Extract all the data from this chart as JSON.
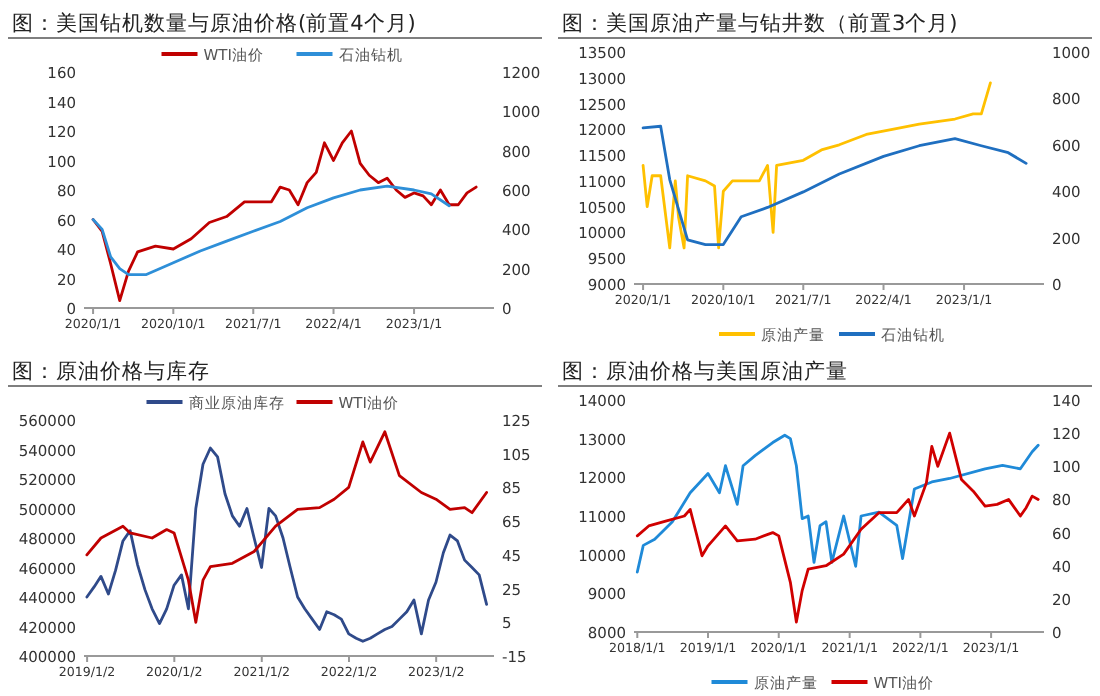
{
  "chart_data": [
    {
      "type": "line",
      "title": "图：美国钻机数量与原油价格(前置4个月)",
      "legend": "top",
      "xlim": [
        "2019-12-01",
        "2023-10-01"
      ],
      "xticks": [
        {
          "value": "2020-01-01",
          "label": "2020/1/1"
        },
        {
          "value": "2020-10-01",
          "label": "2020/10/1"
        },
        {
          "value": "2021-07-01",
          "label": "2021/7/1"
        },
        {
          "value": "2022-04-01",
          "label": "2022/4/1"
        },
        {
          "value": "2023-01-01",
          "label": "2023/1/1"
        }
      ],
      "ylim": [
        0,
        160
      ],
      "yticks": [
        0,
        20,
        40,
        60,
        80,
        100,
        120,
        140,
        160
      ],
      "y2lim": [
        0,
        1200
      ],
      "y2ticks": [
        0,
        200,
        400,
        600,
        800,
        1000,
        1200
      ],
      "series": [
        {
          "name": "WTI油价",
          "color": "#c00000",
          "x": [
            "2020-01",
            "2020-02",
            "2020-03",
            "2020-04",
            "2020-05",
            "2020-06",
            "2020-08",
            "2020-10",
            "2020-12",
            "2021-02",
            "2021-04",
            "2021-06",
            "2021-07",
            "2021-09",
            "2021-10",
            "2021-11",
            "2021-12",
            "2022-01",
            "2022-02",
            "2022-03",
            "2022-04",
            "2022-05",
            "2022-06",
            "2022-07",
            "2022-08",
            "2022-09",
            "2022-10",
            "2022-11",
            "2022-12",
            "2023-01",
            "2023-02",
            "2023-03",
            "2023-04",
            "2023-05",
            "2023-06",
            "2023-07",
            "2023-08"
          ],
          "values": [
            60,
            52,
            30,
            5,
            25,
            38,
            42,
            40,
            47,
            58,
            62,
            72,
            72,
            72,
            82,
            80,
            70,
            85,
            92,
            112,
            100,
            112,
            120,
            98,
            90,
            85,
            88,
            80,
            75,
            78,
            76,
            70,
            80,
            70,
            70,
            78,
            82
          ]
        },
        {
          "name": "石油钻机",
          "color": "#2e8fd8",
          "axis": "y2",
          "x": [
            "2020-01",
            "2020-02",
            "2020-03",
            "2020-04",
            "2020-05",
            "2020-07",
            "2020-10",
            "2021-01",
            "2021-04",
            "2021-07",
            "2021-10",
            "2022-01",
            "2022-04",
            "2022-07",
            "2022-10",
            "2023-01",
            "2023-03",
            "2023-05"
          ],
          "values": [
            450,
            400,
            260,
            200,
            170,
            170,
            230,
            290,
            340,
            390,
            440,
            510,
            560,
            600,
            620,
            600,
            580,
            520
          ]
        }
      ]
    },
    {
      "type": "line",
      "title": "图：美国原油产量与钻井数（前置3个月)",
      "legend": "bottom",
      "xlim": [
        "2019-12-01",
        "2023-10-01"
      ],
      "xticks": [
        {
          "value": "2020-01-01",
          "label": "2020/1/1"
        },
        {
          "value": "2020-10-01",
          "label": "2020/10/1"
        },
        {
          "value": "2021-07-01",
          "label": "2021/7/1"
        },
        {
          "value": "2022-04-01",
          "label": "2022/4/1"
        },
        {
          "value": "2023-01-01",
          "label": "2023/1/1"
        }
      ],
      "ylim": [
        9000,
        13500
      ],
      "yticks": [
        9000,
        9500,
        10000,
        10500,
        11000,
        11500,
        12000,
        12500,
        13000,
        13500
      ],
      "y2lim": [
        0,
        1000
      ],
      "y2ticks": [
        0,
        200,
        400,
        600,
        800,
        1000
      ],
      "series": [
        {
          "name": "原油产量",
          "color": "#ffc000",
          "x": [
            "2020-01-01",
            "2020-01-15",
            "2020-02-01",
            "2020-03-01",
            "2020-04-01",
            "2020-04-20",
            "2020-05-01",
            "2020-05-20",
            "2020-06-01",
            "2020-08-01",
            "2020-09-01",
            "2020-09-15",
            "2020-10-01",
            "2020-11-01",
            "2021-02-01",
            "2021-03-01",
            "2021-03-20",
            "2021-04-01",
            "2021-07-01",
            "2021-09-01",
            "2021-11-01",
            "2022-02-01",
            "2022-05-01",
            "2022-08-01",
            "2022-12-01",
            "2023-02-01",
            "2023-03-01",
            "2023-04-01"
          ],
          "values": [
            11300,
            10500,
            11100,
            11100,
            9700,
            11000,
            10300,
            9700,
            11100,
            11000,
            10900,
            9700,
            10800,
            11000,
            11000,
            11300,
            10000,
            11300,
            11400,
            11600,
            11700,
            11900,
            12000,
            12100,
            12200,
            12300,
            12300,
            12900
          ]
        },
        {
          "name": "石油钻机",
          "color": "#1f6fc0",
          "axis": "y2",
          "x": [
            "2020-01",
            "2020-03",
            "2020-04",
            "2020-06",
            "2020-08",
            "2020-10",
            "2020-12",
            "2021-03",
            "2021-07",
            "2021-11",
            "2022-04",
            "2022-08",
            "2022-12",
            "2023-03",
            "2023-06",
            "2023-08"
          ],
          "values": [
            673,
            680,
            450,
            190,
            170,
            170,
            290,
            330,
            397,
            474,
            550,
            596,
            627,
            596,
            566,
            520
          ]
        }
      ]
    },
    {
      "type": "line",
      "title": "图：原油价格与库存",
      "legend": "top",
      "xlim": [
        "2018-12-20",
        "2023-09-01"
      ],
      "xticks": [
        {
          "value": "2019-01-02",
          "label": "2019/1/2"
        },
        {
          "value": "2020-01-02",
          "label": "2020/1/2"
        },
        {
          "value": "2021-01-02",
          "label": "2021/1/2"
        },
        {
          "value": "2022-01-02",
          "label": "2022/1/2"
        },
        {
          "value": "2023-01-02",
          "label": "2023/1/2"
        }
      ],
      "ylim": [
        400000,
        560000
      ],
      "yticks": [
        400000,
        420000,
        440000,
        460000,
        480000,
        500000,
        520000,
        540000,
        560000
      ],
      "y2lim": [
        -15,
        125
      ],
      "y2ticks": [
        -15,
        5,
        25,
        45,
        65,
        85,
        105,
        125
      ],
      "series": [
        {
          "name": "商业原油库存",
          "color": "#2f4a8a",
          "x": [
            "2019-01",
            "2019-02",
            "2019-03",
            "2019-04",
            "2019-05",
            "2019-06",
            "2019-07",
            "2019-08",
            "2019-09",
            "2019-10",
            "2019-11",
            "2019-12",
            "2020-01",
            "2020-02",
            "2020-03",
            "2020-04",
            "2020-05",
            "2020-06",
            "2020-07",
            "2020-08",
            "2020-09",
            "2020-10",
            "2020-11",
            "2020-12",
            "2021-01",
            "2021-02",
            "2021-03",
            "2021-04",
            "2021-05",
            "2021-06",
            "2021-07",
            "2021-08",
            "2021-09",
            "2021-10",
            "2021-11",
            "2021-12",
            "2022-01",
            "2022-02",
            "2022-03",
            "2022-04",
            "2022-05",
            "2022-06",
            "2022-07",
            "2022-08",
            "2022-09",
            "2022-10",
            "2022-11",
            "2022-12",
            "2023-01",
            "2023-02",
            "2023-03",
            "2023-04",
            "2023-05",
            "2023-06",
            "2023-07",
            "2023-08"
          ],
          "values": [
            440000,
            447000,
            454000,
            442000,
            458000,
            478000,
            485000,
            462000,
            445000,
            432000,
            422000,
            432000,
            448000,
            455000,
            432000,
            500000,
            530000,
            541000,
            535000,
            510000,
            495000,
            488000,
            500000,
            480000,
            460000,
            500000,
            495000,
            480000,
            460000,
            440000,
            432000,
            425000,
            418000,
            430000,
            428000,
            425000,
            415000,
            412000,
            410000,
            412000,
            415000,
            418000,
            420000,
            425000,
            430000,
            438000,
            415000,
            438000,
            450000,
            470000,
            482000,
            478000,
            465000,
            460000,
            455000,
            435000
          ]
        },
        {
          "name": "WTI油价",
          "color": "#c00000",
          "axis": "y2",
          "x": [
            "2019-01",
            "2019-03",
            "2019-06",
            "2019-07",
            "2019-10",
            "2019-12",
            "2020-01",
            "2020-03",
            "2020-04",
            "2020-05",
            "2020-06",
            "2020-09",
            "2020-12",
            "2021-03",
            "2021-06",
            "2021-09",
            "2021-11",
            "2022-01",
            "2022-03",
            "2022-04",
            "2022-06",
            "2022-08",
            "2022-11",
            "2023-01",
            "2023-03",
            "2023-05",
            "2023-06",
            "2023-08"
          ],
          "values": [
            45,
            55,
            62,
            58,
            55,
            60,
            58,
            30,
            5,
            30,
            38,
            40,
            47,
            62,
            72,
            73,
            78,
            85,
            112,
            100,
            118,
            92,
            82,
            78,
            72,
            73,
            70,
            82
          ]
        }
      ]
    },
    {
      "type": "line",
      "title": "图：原油价格与美国原油产量",
      "legend": "bottom",
      "xlim": [
        "2017-12-15",
        "2023-10-01"
      ],
      "xticks": [
        {
          "value": "2018-01-01",
          "label": "2018/1/1"
        },
        {
          "value": "2019-01-01",
          "label": "2019/1/1"
        },
        {
          "value": "2020-01-01",
          "label": "2020/1/1"
        },
        {
          "value": "2021-01-01",
          "label": "2021/1/1"
        },
        {
          "value": "2022-01-01",
          "label": "2022/1/1"
        },
        {
          "value": "2023-01-01",
          "label": "2023/1/1"
        }
      ],
      "ylim": [
        8000,
        14000
      ],
      "yticks": [
        8000,
        9000,
        10000,
        11000,
        12000,
        13000,
        14000
      ],
      "y2lim": [
        0,
        140
      ],
      "y2ticks": [
        0,
        20,
        40,
        60,
        80,
        100,
        120,
        140
      ],
      "series": [
        {
          "name": "原油产量",
          "color": "#1f8ad8",
          "x": [
            "2018-01",
            "2018-02",
            "2018-04",
            "2018-07",
            "2018-10",
            "2019-01",
            "2019-03",
            "2019-04",
            "2019-06",
            "2019-07",
            "2019-09",
            "2019-12",
            "2020-02",
            "2020-03",
            "2020-04",
            "2020-05",
            "2020-06",
            "2020-07",
            "2020-08",
            "2020-09",
            "2020-10",
            "2020-12",
            "2021-02",
            "2021-03",
            "2021-06",
            "2021-09",
            "2021-10",
            "2021-12",
            "2022-03",
            "2022-06",
            "2022-12",
            "2023-03",
            "2023-06",
            "2023-08",
            "2023-09"
          ],
          "values": [
            9550,
            10240,
            10400,
            10850,
            11600,
            12100,
            11600,
            12300,
            11300,
            12300,
            12560,
            12900,
            13090,
            13000,
            12300,
            10930,
            11000,
            9800,
            10750,
            10850,
            9800,
            11000,
            9700,
            11000,
            11100,
            10760,
            9900,
            11700,
            11880,
            11970,
            12220,
            12310,
            12220,
            12660,
            12830
          ]
        },
        {
          "name": "WTI油价",
          "color": "#d00000",
          "axis": "y2",
          "x": [
            "2018-01",
            "2018-03",
            "2018-06",
            "2018-09",
            "2018-10",
            "2018-12",
            "2019-01",
            "2019-04",
            "2019-06",
            "2019-09",
            "2019-12",
            "2020-01",
            "2020-03",
            "2020-04",
            "2020-05",
            "2020-06",
            "2020-09",
            "2020-12",
            "2021-03",
            "2021-06",
            "2021-09",
            "2021-11",
            "2021-12",
            "2022-02",
            "2022-03",
            "2022-04",
            "2022-06",
            "2022-08",
            "2022-10",
            "2022-12",
            "2023-02",
            "2023-04",
            "2023-06",
            "2023-07",
            "2023-08",
            "2023-09"
          ],
          "values": [
            58,
            64,
            67,
            70,
            74,
            46,
            52,
            64,
            55,
            56,
            60,
            58,
            30,
            6,
            25,
            38,
            40,
            47,
            62,
            72,
            72,
            80,
            70,
            90,
            112,
            100,
            120,
            92,
            85,
            76,
            77,
            80,
            70,
            75,
            82,
            80
          ]
        }
      ]
    }
  ]
}
